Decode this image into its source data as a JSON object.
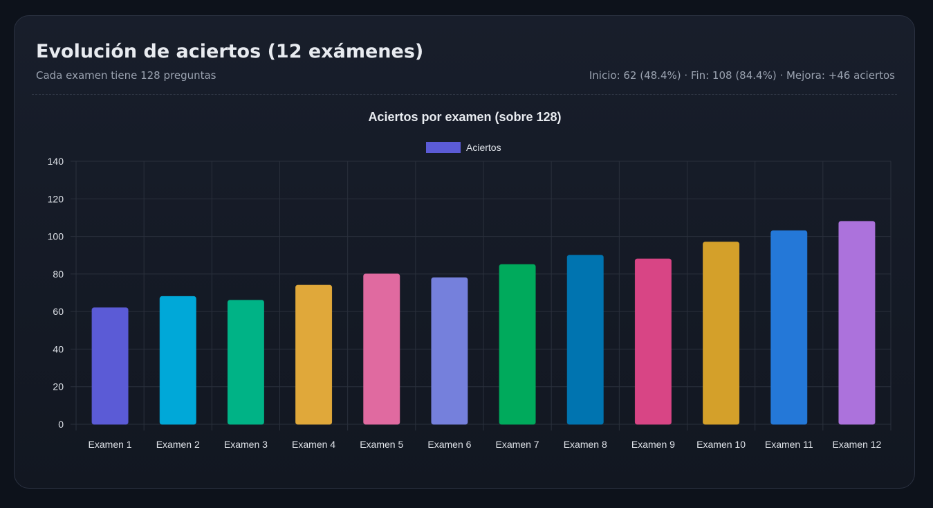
{
  "header": {
    "title": "Evolución de aciertos (12 exámenes)",
    "subtitle": "Cada examen tiene 128 preguntas",
    "stats": "Inicio: 62 (48.4%) · Fin: 108 (84.4%) · Mejora: +46 aciertos"
  },
  "chart_data": {
    "type": "bar",
    "title": "Aciertos por examen (sobre 128)",
    "categories": [
      "Examen 1",
      "Examen 2",
      "Examen 3",
      "Examen 4",
      "Examen 5",
      "Examen 6",
      "Examen 7",
      "Examen 8",
      "Examen 9",
      "Examen 10",
      "Examen 11",
      "Examen 12"
    ],
    "series": [
      {
        "name": "Aciertos",
        "values": [
          62,
          68,
          66,
          74,
          80,
          78,
          85,
          90,
          88,
          97,
          103,
          108
        ]
      }
    ],
    "colors": [
      "#5b5bd6",
      "#00a8d8",
      "#00b386",
      "#e0a83a",
      "#e06aa0",
      "#7580dc",
      "#00aa5c",
      "#0074b0",
      "#d84585",
      "#d4a02a",
      "#2478d8",
      "#ac72dc"
    ],
    "ylim": [
      0,
      140
    ],
    "yticks": [
      0,
      20,
      40,
      60,
      80,
      100,
      120,
      140
    ],
    "legend": "top",
    "grid": true
  }
}
